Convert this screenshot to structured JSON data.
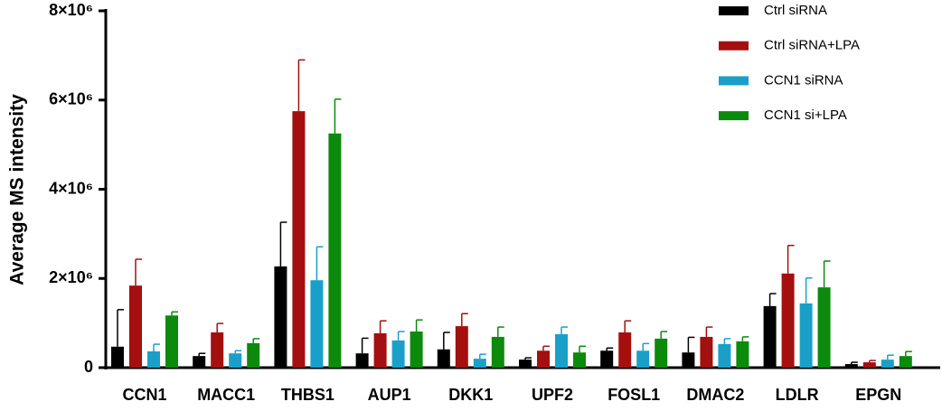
{
  "chart_data": {
    "type": "bar",
    "y_label": "Average MS intensity",
    "categories": [
      "CCN1",
      "MACC1",
      "THBS1",
      "AUP1",
      "DKK1",
      "UPF2",
      "FOSL1",
      "DMAC2",
      "LDLR",
      "EPGN"
    ],
    "series": [
      {
        "name": "Ctrl siRNA",
        "color": "#000000",
        "values": [
          470000,
          260000,
          2270000,
          320000,
          410000,
          180000,
          380000,
          340000,
          1380000,
          80000
        ],
        "errors": [
          830000,
          60000,
          990000,
          340000,
          380000,
          40000,
          60000,
          340000,
          280000,
          40000
        ]
      },
      {
        "name": "Ctrl siRNA+LPA",
        "color": "#a3100f",
        "values": [
          1840000,
          790000,
          5750000,
          770000,
          930000,
          380000,
          790000,
          690000,
          2110000,
          120000
        ],
        "errors": [
          590000,
          200000,
          1150000,
          280000,
          280000,
          100000,
          260000,
          220000,
          630000,
          40000
        ]
      },
      {
        "name": "CCN1 siRNA",
        "color": "#1aa0c8",
        "values": [
          365000,
          320000,
          1960000,
          610000,
          200000,
          750000,
          380000,
          530000,
          1440000,
          180000
        ],
        "errors": [
          160000,
          60000,
          750000,
          200000,
          100000,
          160000,
          160000,
          120000,
          570000,
          100000
        ]
      },
      {
        "name": "CCN1 si+LPA",
        "color": "#0b8a0b",
        "values": [
          1170000,
          550000,
          5250000,
          810000,
          690000,
          340000,
          650000,
          590000,
          1800000,
          260000
        ],
        "errors": [
          80000,
          100000,
          770000,
          260000,
          220000,
          140000,
          160000,
          100000,
          590000,
          100000
        ]
      }
    ],
    "ylim": [
      0,
      8000000
    ],
    "yticks": [
      0,
      {
        "value": 2000000,
        "label": "2×10⁶"
      },
      {
        "value": 4000000,
        "label": "4×10⁶"
      },
      {
        "value": 6000000,
        "label": "6×10⁶"
      },
      {
        "value": 8000000,
        "label": "8×10⁶"
      }
    ],
    "legend": "top-right"
  }
}
